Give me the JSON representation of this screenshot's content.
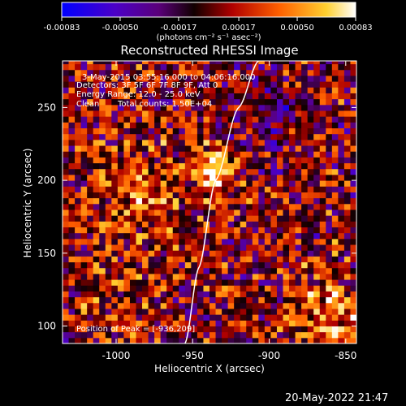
{
  "chart_data": {
    "type": "heatmap",
    "title": "Reconstructed RHESSI Image",
    "xlabel": "Heliocentric X (arcsec)",
    "ylabel": "Heliocentric Y (arcsec)",
    "xlim": [
      -1035,
      -843
    ],
    "ylim": [
      88,
      282
    ],
    "x_ticks": [
      -1000,
      -950,
      -900,
      -850
    ],
    "x_tick_labels": [
      "-1000",
      "-950",
      "-900",
      "-850"
    ],
    "y_ticks": [
      100,
      150,
      200,
      250
    ],
    "y_tick_labels": [
      "100",
      "150",
      "200",
      "250"
    ],
    "colorbar": {
      "label": "(photons cm⁻² s⁻¹ asec⁻²)",
      "range": [
        -0.00083,
        0.00083
      ],
      "ticks": [
        -0.00083,
        -0.0005,
        -0.00017,
        0.00017,
        0.0005,
        0.00083
      ],
      "tick_labels": [
        "-0.00083",
        "-0.00050",
        "-0.00017",
        "0.00017",
        "0.00050",
        "0.00083"
      ],
      "colors": [
        "#0000ff",
        "#7000a8",
        "#000000",
        "#c00000",
        "#ff7000",
        "#ffe040",
        "#ffffff"
      ]
    },
    "peak": {
      "x": -936,
      "y": 209
    },
    "limb_curve": [
      [
        -955,
        88
      ],
      [
        -946,
        140
      ],
      [
        -935,
        200
      ],
      [
        -920,
        250
      ],
      [
        -907,
        282
      ]
    ],
    "grid": false
  },
  "annotations": {
    "line1": "3-May-2015 03:55:16.000 to 04:06:16.000",
    "line2": "Detectors: 3F 5F 6F 7F 8F 9F, Att 0",
    "line3": "Energy Range: 12.0 - 25.0 keV",
    "line4_method": "Clean",
    "line4_counts": "Total counts: 1.50E+04",
    "peak_text": "Position of Peak = [-936,209]"
  },
  "footer": {
    "timestamp": "20-May-2022 21:47"
  }
}
